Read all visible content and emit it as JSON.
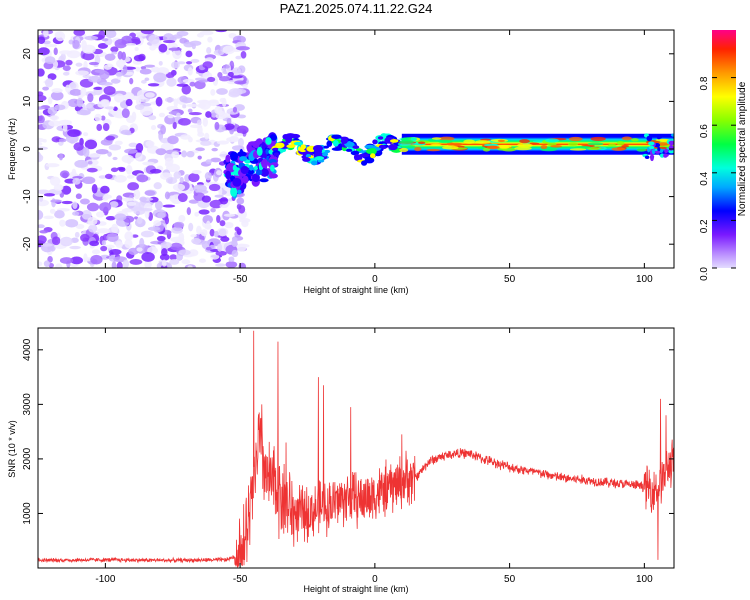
{
  "title": "PAZ1.2025.074.11.22.G24",
  "chart_data": [
    {
      "type": "heatmap",
      "xlabel": "Height of straight line (km)",
      "ylabel": "Frequency (Hz)",
      "xlim": [
        -125,
        111
      ],
      "ylim": [
        -25,
        25
      ],
      "x_ticks": [
        -100,
        -50,
        0,
        50,
        100
      ],
      "y_ticks": [
        -20,
        -10,
        0,
        10,
        20
      ],
      "colorbar": {
        "label": "Normalized spectral amplitude",
        "range": [
          0,
          1
        ],
        "ticks": [
          "0.0",
          "0.2",
          "0.4",
          "0.6",
          "0.8"
        ]
      },
      "regions": [
        {
          "x": [
            -125,
            -51
          ],
          "freq": [
            -25,
            25
          ],
          "amplitude": "0.0-0.3 (scattered noise)"
        },
        {
          "x": [
            -55,
            -37
          ],
          "freq": [
            -10,
            3
          ],
          "amplitude": "0.2-0.5"
        },
        {
          "x": [
            -37,
            10
          ],
          "freq": [
            -3,
            4
          ],
          "amplitude": "0.2-0.7"
        },
        {
          "x": [
            10,
            100
          ],
          "freq": [
            0,
            2
          ],
          "amplitude": "0.6-1.0"
        },
        {
          "x": [
            100,
            111
          ],
          "freq": [
            -2,
            3
          ],
          "amplitude": "0.3-0.6"
        }
      ],
      "grid": false,
      "legend": "colorbar-right"
    },
    {
      "type": "line",
      "xlabel": "Height of straight line (km)",
      "ylabel": "SNR (10 * v/v)",
      "xlim": [
        -125,
        111
      ],
      "ylim": [
        0,
        4400
      ],
      "x_ticks": [
        -100,
        -50,
        0,
        50,
        100
      ],
      "y_ticks": [
        1000,
        2000,
        3000,
        4000
      ],
      "color": "#ee3333",
      "envelope": {
        "x": [
          -125,
          -100,
          -75,
          -55,
          -50,
          -48,
          -45,
          -43,
          -40,
          -37,
          -35,
          -30,
          -25,
          -20,
          -15,
          -10,
          -5,
          0,
          5,
          10,
          15,
          20,
          25,
          30,
          35,
          40,
          50,
          60,
          70,
          80,
          90,
          100,
          102,
          105,
          107,
          109,
          111
        ],
        "y": [
          140,
          150,
          140,
          150,
          250,
          500,
          1400,
          2400,
          1600,
          1500,
          1300,
          1000,
          1000,
          1100,
          1200,
          1300,
          1250,
          1350,
          1450,
          1600,
          1650,
          1950,
          2050,
          2100,
          2100,
          2000,
          1850,
          1750,
          1650,
          1600,
          1550,
          1500,
          1450,
          1500,
          1650,
          1850,
          2000
        ]
      },
      "spikes": [
        {
          "x": -45,
          "y": 4350
        },
        {
          "x": -42,
          "y": 3000
        },
        {
          "x": -36,
          "y": 4150
        },
        {
          "x": -33,
          "y": 2300
        },
        {
          "x": -21,
          "y": 3500
        },
        {
          "x": -19,
          "y": 3350
        },
        {
          "x": -9,
          "y": 2950
        },
        {
          "x": 10,
          "y": 2450
        },
        {
          "x": 106,
          "y": 3100
        },
        {
          "x": 108,
          "y": 2800
        },
        {
          "x": 105,
          "y": 150
        }
      ],
      "grid": false
    }
  ]
}
